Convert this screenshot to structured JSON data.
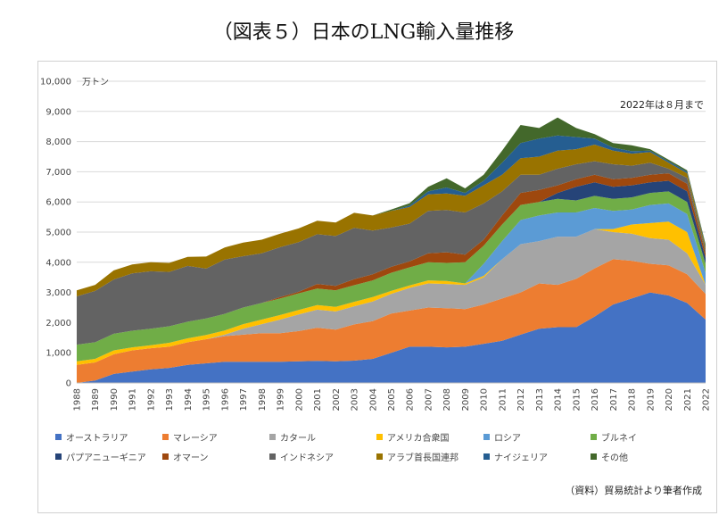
{
  "title": "（図表５）日本のLNG輸入量推移",
  "source": "（資料）貿易統計より筆者作成",
  "chart_data": {
    "type": "area",
    "stacked": true,
    "unit_label": "万トン",
    "annotation": "2022年は８月まで",
    "ylim": [
      0,
      10000
    ],
    "yticks": [
      "0",
      "1,000",
      "2,000",
      "3,000",
      "4,000",
      "5,000",
      "6,000",
      "7,000",
      "8,000",
      "9,000",
      "10,000"
    ],
    "x": [
      "1988",
      "1989",
      "1990",
      "1991",
      "1992",
      "1993",
      "1994",
      "1995",
      "1996",
      "1997",
      "1998",
      "1999",
      "2000",
      "2001",
      "2002",
      "2003",
      "2004",
      "2005",
      "2006",
      "2007",
      "2008",
      "2009",
      "2010",
      "2011",
      "2012",
      "2013",
      "2014",
      "2015",
      "2016",
      "2017",
      "2018",
      "2019",
      "2020",
      "2021",
      "2022"
    ],
    "series": [
      {
        "name": "オーストラリア",
        "color": "#4472c4",
        "values": [
          0,
          80,
          300,
          380,
          450,
          500,
          600,
          650,
          700,
          700,
          700,
          700,
          720,
          730,
          720,
          740,
          800,
          1000,
          1200,
          1200,
          1180,
          1200,
          1300,
          1400,
          1600,
          1800,
          1850,
          1850,
          2200,
          2600,
          2800,
          3000,
          2900,
          2650,
          2100
        ]
      },
      {
        "name": "マレーシア",
        "color": "#ed7d31",
        "values": [
          600,
          600,
          650,
          700,
          700,
          700,
          750,
          800,
          850,
          900,
          950,
          950,
          1000,
          1100,
          1050,
          1200,
          1250,
          1300,
          1200,
          1300,
          1300,
          1250,
          1300,
          1400,
          1400,
          1500,
          1400,
          1600,
          1600,
          1500,
          1250,
          950,
          1000,
          950,
          850
        ]
      },
      {
        "name": "カタール",
        "color": "#a5a5a5",
        "values": [
          0,
          0,
          0,
          0,
          0,
          0,
          0,
          0,
          50,
          200,
          300,
          450,
          550,
          600,
          600,
          600,
          650,
          650,
          750,
          800,
          800,
          800,
          900,
          1300,
          1600,
          1400,
          1600,
          1400,
          1300,
          900,
          900,
          850,
          850,
          700,
          300
        ]
      },
      {
        "name": "アメリカ合衆国",
        "color": "#ffc000",
        "values": [
          120,
          120,
          130,
          100,
          100,
          130,
          130,
          140,
          140,
          150,
          150,
          150,
          150,
          150,
          150,
          150,
          150,
          100,
          80,
          100,
          100,
          50,
          50,
          0,
          0,
          0,
          0,
          0,
          0,
          100,
          300,
          500,
          600,
          700,
          0
        ]
      },
      {
        "name": "ロシア",
        "color": "#5b9bd5",
        "values": [
          0,
          0,
          0,
          0,
          0,
          0,
          0,
          0,
          0,
          0,
          0,
          0,
          0,
          0,
          0,
          0,
          0,
          0,
          0,
          0,
          0,
          0,
          400,
          600,
          800,
          850,
          800,
          800,
          700,
          600,
          500,
          600,
          600,
          600,
          400
        ]
      },
      {
        "name": "ブルネイ",
        "color": "#70ad47",
        "values": [
          550,
          550,
          550,
          550,
          550,
          550,
          550,
          550,
          550,
          550,
          550,
          550,
          550,
          550,
          550,
          550,
          550,
          600,
          600,
          600,
          600,
          700,
          600,
          550,
          500,
          450,
          450,
          400,
          400,
          400,
          400,
          400,
          400,
          400,
          300
        ]
      },
      {
        "name": "パプアニューギニア",
        "color": "#264478",
        "values": [
          0,
          0,
          0,
          0,
          0,
          0,
          0,
          0,
          0,
          0,
          0,
          0,
          0,
          0,
          0,
          0,
          0,
          0,
          0,
          0,
          0,
          0,
          0,
          0,
          0,
          0,
          200,
          450,
          450,
          400,
          400,
          350,
          350,
          350,
          200
        ]
      },
      {
        "name": "オマーン",
        "color": "#9e480e",
        "values": [
          0,
          0,
          0,
          0,
          0,
          0,
          0,
          0,
          0,
          0,
          0,
          50,
          50,
          150,
          150,
          200,
          200,
          200,
          200,
          300,
          350,
          250,
          200,
          300,
          400,
          400,
          250,
          250,
          250,
          250,
          250,
          250,
          250,
          250,
          150
        ]
      },
      {
        "name": "インドネシア",
        "color": "#636363",
        "values": [
          1600,
          1700,
          1800,
          1900,
          1900,
          1800,
          1850,
          1650,
          1800,
          1700,
          1650,
          1650,
          1650,
          1650,
          1650,
          1700,
          1450,
          1300,
          1250,
          1400,
          1400,
          1400,
          1200,
          800,
          600,
          500,
          550,
          500,
          450,
          500,
          400,
          400,
          150,
          200,
          100
        ]
      },
      {
        "name": "アラブ首長国連邦",
        "color": "#997300",
        "values": [
          200,
          200,
          300,
          300,
          300,
          300,
          300,
          400,
          400,
          450,
          450,
          450,
          450,
          450,
          450,
          500,
          500,
          550,
          550,
          550,
          550,
          550,
          600,
          550,
          550,
          600,
          600,
          500,
          550,
          450,
          400,
          350,
          200,
          150,
          100
        ]
      },
      {
        "name": "ナイジェリア",
        "color": "#255e91",
        "values": [
          0,
          0,
          0,
          0,
          0,
          0,
          0,
          0,
          0,
          0,
          0,
          0,
          0,
          0,
          0,
          0,
          0,
          0,
          50,
          100,
          200,
          100,
          150,
          400,
          500,
          600,
          500,
          400,
          200,
          100,
          80,
          50,
          50,
          50,
          50
        ]
      },
      {
        "name": "その他",
        "color": "#43682b",
        "values": [
          0,
          0,
          0,
          0,
          0,
          0,
          0,
          0,
          0,
          0,
          0,
          0,
          0,
          0,
          0,
          0,
          0,
          50,
          80,
          150,
          300,
          150,
          200,
          400,
          600,
          350,
          600,
          300,
          150,
          150,
          200,
          50,
          50,
          50,
          50
        ]
      }
    ]
  }
}
